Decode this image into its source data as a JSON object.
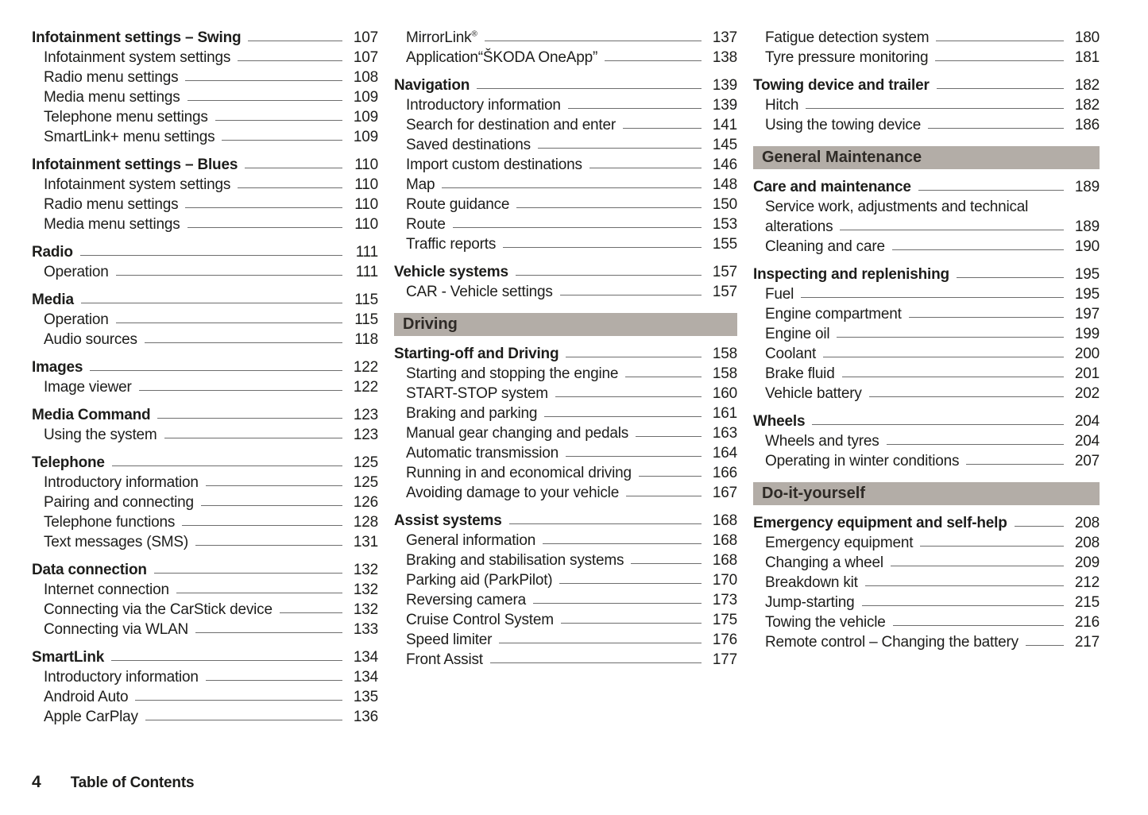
{
  "colors": {
    "section_header_bg": "#b3ada7",
    "section_header_text": "#2e2a26",
    "body_text": "#1d1d1b",
    "leader_line": "#6e6e6e"
  },
  "footer": {
    "page_number": "4",
    "title": "Table of Contents"
  },
  "columns": [
    [
      {
        "type": "group",
        "entries": [
          {
            "label": "Infotainment settings – Swing",
            "page": "107",
            "bold": true
          },
          {
            "label": "Infotainment system settings",
            "page": "107"
          },
          {
            "label": "Radio menu settings",
            "page": "108"
          },
          {
            "label": "Media menu settings",
            "page": "109"
          },
          {
            "label": "Telephone menu settings",
            "page": "109"
          },
          {
            "label": "SmartLink+ menu settings",
            "page": "109"
          }
        ]
      },
      {
        "type": "group",
        "entries": [
          {
            "label": "Infotainment settings – Blues",
            "page": "110",
            "bold": true
          },
          {
            "label": "Infotainment system settings",
            "page": "110"
          },
          {
            "label": "Radio menu settings",
            "page": "110"
          },
          {
            "label": "Media menu settings",
            "page": "110"
          }
        ]
      },
      {
        "type": "group",
        "entries": [
          {
            "label": "Radio",
            "page": "111",
            "bold": true
          },
          {
            "label": "Operation",
            "page": "111"
          }
        ]
      },
      {
        "type": "group",
        "entries": [
          {
            "label": "Media",
            "page": "115",
            "bold": true
          },
          {
            "label": "Operation",
            "page": "115"
          },
          {
            "label": "Audio sources",
            "page": "118"
          }
        ]
      },
      {
        "type": "group",
        "entries": [
          {
            "label": "Images",
            "page": "122",
            "bold": true
          },
          {
            "label": "Image viewer",
            "page": "122"
          }
        ]
      },
      {
        "type": "group",
        "entries": [
          {
            "label": "Media Command",
            "page": "123",
            "bold": true
          },
          {
            "label": "Using the system",
            "page": "123"
          }
        ]
      },
      {
        "type": "group",
        "entries": [
          {
            "label": "Telephone",
            "page": "125",
            "bold": true
          },
          {
            "label": "Introductory information",
            "page": "125"
          },
          {
            "label": "Pairing and connecting",
            "page": "126"
          },
          {
            "label": "Telephone functions",
            "page": "128"
          },
          {
            "label": "Text messages (SMS)",
            "page": "131"
          }
        ]
      },
      {
        "type": "group",
        "entries": [
          {
            "label": "Data connection",
            "page": "132",
            "bold": true
          },
          {
            "label": "Internet connection",
            "page": "132"
          },
          {
            "label": "Connecting via the CarStick device",
            "page": "132"
          },
          {
            "label": "Connecting via WLAN",
            "page": "133"
          }
        ]
      },
      {
        "type": "group",
        "entries": [
          {
            "label": "SmartLink",
            "page": "134",
            "bold": true
          },
          {
            "label": "Introductory information",
            "page": "134"
          },
          {
            "label": "Android Auto",
            "page": "135"
          },
          {
            "label": "Apple CarPlay",
            "page": "136"
          }
        ]
      }
    ],
    [
      {
        "type": "group",
        "entries": [
          {
            "label": "MirrorLink",
            "sup": "®",
            "page": "137"
          },
          {
            "label": "Application“ŠKODA OneApp”",
            "page": "138"
          }
        ]
      },
      {
        "type": "group",
        "entries": [
          {
            "label": "Navigation",
            "page": "139",
            "bold": true
          },
          {
            "label": "Introductory information",
            "page": "139"
          },
          {
            "label": "Search for destination and enter",
            "page": "141"
          },
          {
            "label": "Saved destinations",
            "page": "145"
          },
          {
            "label": "Import custom destinations",
            "page": "146"
          },
          {
            "label": "Map",
            "page": "148"
          },
          {
            "label": "Route guidance",
            "page": "150"
          },
          {
            "label": "Route",
            "page": "153"
          },
          {
            "label": "Traffic reports",
            "page": "155"
          }
        ]
      },
      {
        "type": "group",
        "entries": [
          {
            "label": "Vehicle systems",
            "page": "157",
            "bold": true
          },
          {
            "label": "CAR - Vehicle settings",
            "page": "157"
          }
        ]
      },
      {
        "type": "header",
        "label": "Driving"
      },
      {
        "type": "group",
        "entries": [
          {
            "label": "Starting-off and Driving",
            "page": "158",
            "bold": true
          },
          {
            "label": "Starting and stopping the engine",
            "page": "158"
          },
          {
            "label": "START-STOP system",
            "page": "160"
          },
          {
            "label": "Braking and parking",
            "page": "161"
          },
          {
            "label": "Manual gear changing and pedals",
            "page": "163"
          },
          {
            "label": "Automatic transmission",
            "page": "164"
          },
          {
            "label": "Running in and economical driving",
            "page": "166"
          },
          {
            "label": "Avoiding damage to your vehicle",
            "page": "167"
          }
        ]
      },
      {
        "type": "group",
        "entries": [
          {
            "label": "Assist systems",
            "page": "168",
            "bold": true
          },
          {
            "label": "General information",
            "page": "168"
          },
          {
            "label": "Braking and stabilisation systems",
            "page": "168"
          },
          {
            "label": "Parking aid (ParkPilot)",
            "page": "170"
          },
          {
            "label": "Reversing camera",
            "page": "173"
          },
          {
            "label": "Cruise Control System",
            "page": "175"
          },
          {
            "label": "Speed limiter",
            "page": "176"
          },
          {
            "label": "Front Assist",
            "page": "177"
          }
        ]
      }
    ],
    [
      {
        "type": "group",
        "entries": [
          {
            "label": "Fatigue detection system",
            "page": "180"
          },
          {
            "label": "Tyre pressure monitoring",
            "page": "181"
          }
        ]
      },
      {
        "type": "group",
        "entries": [
          {
            "label": "Towing device and trailer",
            "page": "182",
            "bold": true
          },
          {
            "label": "Hitch",
            "page": "182"
          },
          {
            "label": "Using the towing device",
            "page": "186"
          }
        ]
      },
      {
        "type": "header",
        "label": "General Maintenance"
      },
      {
        "type": "group",
        "entries": [
          {
            "label": "Care and maintenance",
            "page": "189",
            "bold": true
          },
          {
            "label": "Service work, adjustments and technical",
            "noleader": true
          },
          {
            "label": "alterations",
            "page": "189"
          },
          {
            "label": "Cleaning and care",
            "page": "190"
          }
        ]
      },
      {
        "type": "group",
        "entries": [
          {
            "label": "Inspecting and replenishing",
            "page": "195",
            "bold": true
          },
          {
            "label": "Fuel",
            "page": "195"
          },
          {
            "label": "Engine compartment",
            "page": "197"
          },
          {
            "label": "Engine oil",
            "page": "199"
          },
          {
            "label": "Coolant",
            "page": "200"
          },
          {
            "label": "Brake fluid",
            "page": "201"
          },
          {
            "label": "Vehicle battery",
            "page": "202"
          }
        ]
      },
      {
        "type": "group",
        "entries": [
          {
            "label": "Wheels",
            "page": "204",
            "bold": true
          },
          {
            "label": "Wheels and tyres",
            "page": "204"
          },
          {
            "label": "Operating in winter conditions",
            "page": "207"
          }
        ]
      },
      {
        "type": "header",
        "label": "Do-it-yourself"
      },
      {
        "type": "group",
        "entries": [
          {
            "label": "Emergency equipment and self-help",
            "page": "208",
            "bold": true
          },
          {
            "label": "Emergency equipment",
            "page": "208"
          },
          {
            "label": "Changing a wheel",
            "page": "209"
          },
          {
            "label": "Breakdown kit",
            "page": "212"
          },
          {
            "label": "Jump-starting",
            "page": "215"
          },
          {
            "label": "Towing the vehicle",
            "page": "216"
          },
          {
            "label": "Remote control – Changing the battery",
            "page": "217"
          }
        ]
      }
    ]
  ]
}
